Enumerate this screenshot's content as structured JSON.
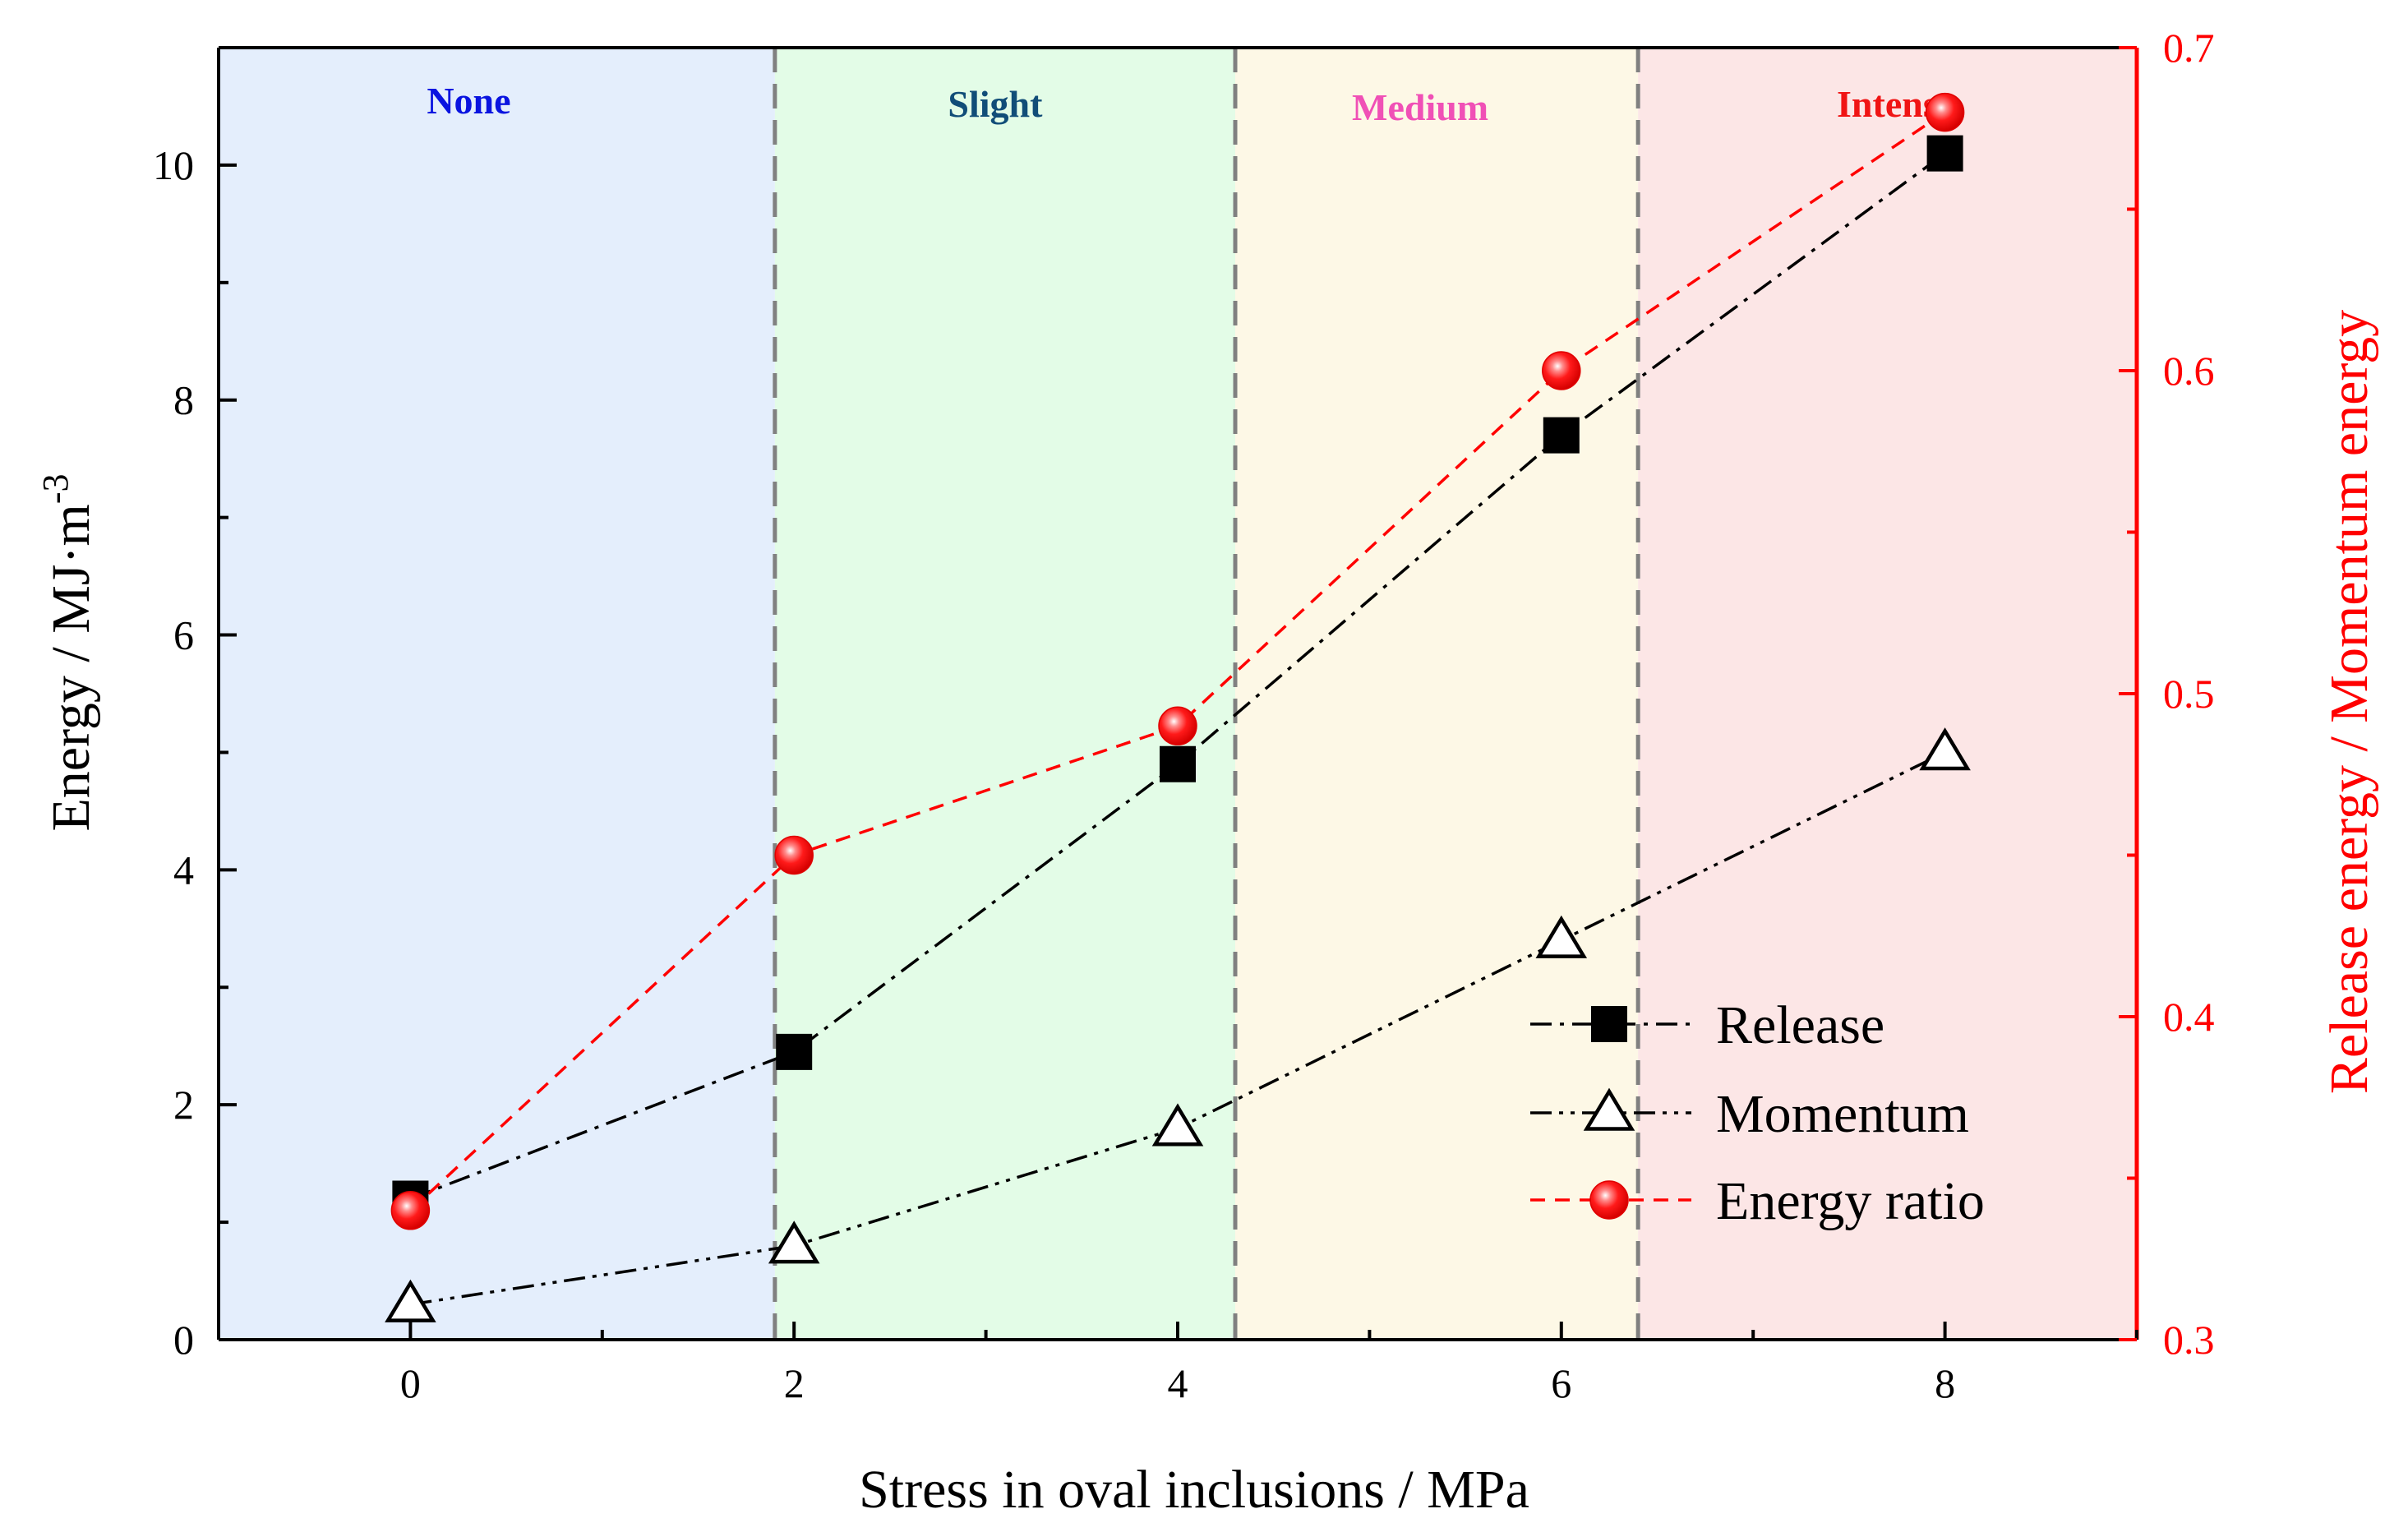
{
  "chart_data": {
    "type": "line",
    "xlabel": "Stress in oval inclusions / MPa",
    "ylabel_left_main": "Energy / MJ·m",
    "ylabel_left_sup": "-3",
    "ylabel_right": "Release energy / Momentum energy",
    "xlim": [
      -1,
      9
    ],
    "ylim_left": [
      0,
      11
    ],
    "ylim_right": [
      0.3,
      0.7
    ],
    "x_ticks": [
      0,
      2,
      4,
      6,
      8
    ],
    "x_tick_labels": [
      "0",
      "2",
      "4",
      "6",
      "8"
    ],
    "y_left_ticks": [
      0,
      2,
      4,
      6,
      8,
      10
    ],
    "y_left_tick_labels": [
      "0",
      "2",
      "4",
      "6",
      "8",
      "10"
    ],
    "y_right_ticks": [
      0.3,
      0.4,
      0.5,
      0.6,
      0.7
    ],
    "y_right_tick_labels": [
      "0.3",
      "0.4",
      "0.5",
      "0.6",
      "0.7"
    ],
    "zones": [
      {
        "label": "None",
        "x_from": -1,
        "x_to": 1.9,
        "fill": "#e4eefc",
        "text_color": "#0a14e0"
      },
      {
        "label": "Slight",
        "x_from": 1.9,
        "x_to": 4.3,
        "fill": "#e3fce7",
        "text_color": "#114d78"
      },
      {
        "label": "Medium",
        "x_from": 4.3,
        "x_to": 6.4,
        "fill": "#fdf8e6",
        "text_color": "#f050b6"
      },
      {
        "label": "Intense",
        "x_from": 6.4,
        "x_to": 9,
        "fill": "#fce6e6",
        "text_color": "#f01414"
      }
    ],
    "boundaries": [
      1.9,
      4.3,
      6.4
    ],
    "x": [
      0,
      2,
      4,
      6,
      8
    ],
    "series": [
      {
        "name": "Release",
        "axis": "left",
        "marker": "square",
        "color": "#000000",
        "values": [
          1.2,
          2.45,
          4.9,
          7.7,
          10.1
        ]
      },
      {
        "name": "Momentum",
        "axis": "left",
        "marker": "triangle",
        "color": "#000000",
        "values": [
          0.3,
          0.8,
          1.8,
          3.4,
          5.0
        ]
      },
      {
        "name": "Energy ratio",
        "axis": "right",
        "marker": "circle",
        "color": "#ff0000",
        "values": [
          0.34,
          0.45,
          0.49,
          0.6,
          0.68
        ]
      }
    ],
    "legend_position": "lower-right",
    "colors": {
      "axis_right": "#ff0000",
      "boundary": "#808080"
    }
  }
}
